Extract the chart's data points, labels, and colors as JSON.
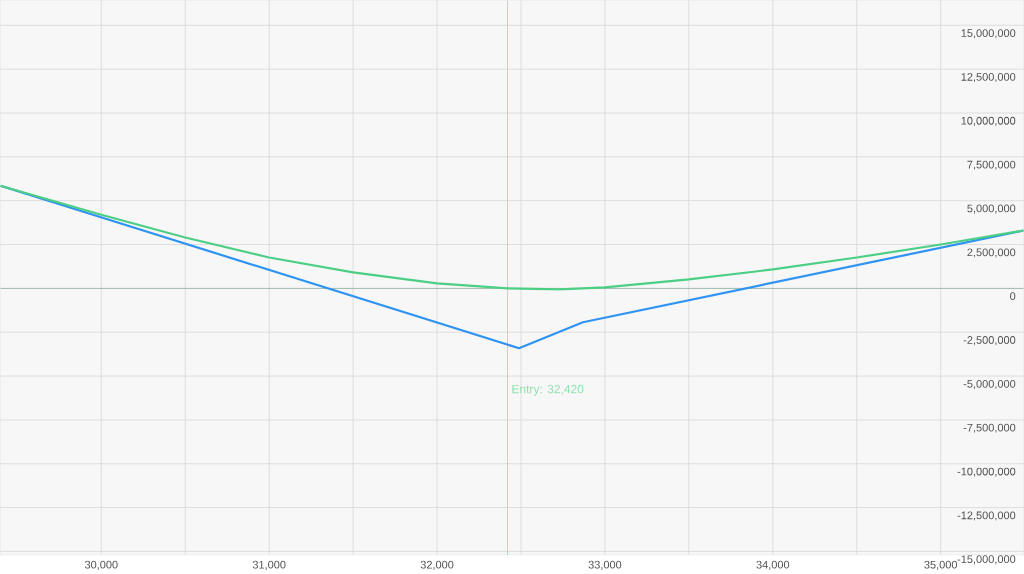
{
  "chart_data": {
    "type": "line",
    "x": [
      29399,
      30000,
      30500,
      31000,
      31500,
      32000,
      32420,
      32730,
      33000,
      33500,
      34000,
      34500,
      35000,
      35494
    ],
    "series": [
      {
        "color": "#2e93f2",
        "x": [
          29399,
          32488,
          32869,
          35494
        ],
        "values": [
          5850000,
          -3410000,
          -1930000,
          3300000
        ]
      },
      {
        "color": "#4ccf85",
        "values": [
          5850000,
          4200000,
          2900000,
          1760000,
          910000,
          280000,
          0,
          -60000,
          60000,
          510000,
          1080000,
          1760000,
          2500000,
          3300000
        ]
      }
    ],
    "xlim": [
      29399,
      35494
    ],
    "ylim": [
      -15200000,
      16420000
    ],
    "xticks": [
      {
        "value": 30000,
        "label": "30,000"
      },
      {
        "value": 30500,
        "label": null
      },
      {
        "value": 31000,
        "label": "31,000"
      },
      {
        "value": 31500,
        "label": null
      },
      {
        "value": 32000,
        "label": "32,000"
      },
      {
        "value": 32500,
        "label": null
      },
      {
        "value": 33000,
        "label": "33,000"
      },
      {
        "value": 33500,
        "label": null
      },
      {
        "value": 34000,
        "label": "34,000"
      },
      {
        "value": 34500,
        "label": null
      },
      {
        "value": 35000,
        "label": "35,000"
      }
    ],
    "yticks": [
      {
        "value": -15000000,
        "label": "-15,000,000"
      },
      {
        "value": -12500000,
        "label": "-12,500,000"
      },
      {
        "value": -10000000,
        "label": "-10,000,000"
      },
      {
        "value": -7500000,
        "label": "-7,500,000"
      },
      {
        "value": -5000000,
        "label": "-5,000,000"
      },
      {
        "value": -2500000,
        "label": "-2,500,000"
      },
      0,
      {
        "value": 2500000,
        "label": "2,500,000"
      },
      {
        "value": 5000000,
        "label": "5,000,000"
      },
      {
        "value": 7500000,
        "label": "7,500,000"
      },
      {
        "value": 10000000,
        "label": "10,000,000"
      },
      {
        "value": 12500000,
        "label": "12,500,000"
      },
      {
        "value": 15000000,
        "label": "15,000,000"
      }
    ],
    "grid": true,
    "ref_lines": [
      {
        "axis": "x",
        "value": 32420,
        "label": "Entry: 32,420",
        "color": "#8ee0ae"
      },
      {
        "axis": "y",
        "value": 0,
        "color": "#6fa58c"
      }
    ]
  }
}
